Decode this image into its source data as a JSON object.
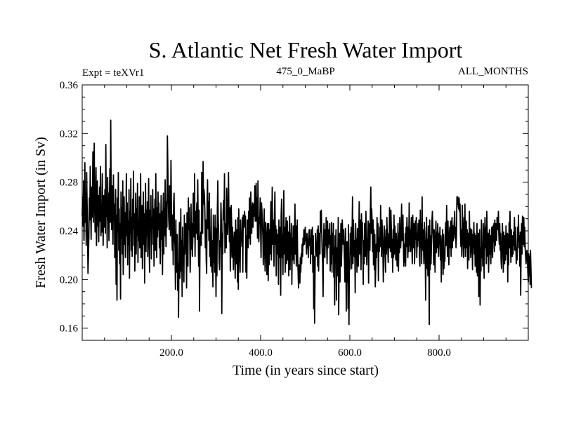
{
  "chart_data": {
    "type": "line",
    "title": "S. Atlantic Net Fresh Water Import",
    "subtitle_left": "Expt = teXVr1",
    "subtitle_center": "475_0_MaBP",
    "subtitle_right": "ALL_MONTHS",
    "xlabel": "Time (in years since start)",
    "ylabel": "Fresh Water Import (in Sv)",
    "xlim": [
      0,
      1000
    ],
    "ylim": [
      0.15,
      0.36
    ],
    "x_ticks": [
      {
        "value": 200,
        "label": "200.0"
      },
      {
        "value": 400,
        "label": "400.0"
      },
      {
        "value": 600,
        "label": "600.0"
      },
      {
        "value": 800,
        "label": "800.0"
      }
    ],
    "y_ticks": [
      {
        "value": 0.16,
        "label": "0.16"
      },
      {
        "value": 0.2,
        "label": "0.20"
      },
      {
        "value": 0.24,
        "label": "0.24"
      },
      {
        "value": 0.28,
        "label": "0.28"
      },
      {
        "value": 0.32,
        "label": "0.32"
      },
      {
        "value": 0.36,
        "label": "0.36"
      }
    ],
    "series": [
      {
        "name": "fresh_water_import",
        "x_start": 0,
        "x_step": 1,
        "values": [
          0.252,
          0.268,
          0.244,
          0.281,
          0.232,
          0.259,
          0.296,
          0.247,
          0.271,
          0.228,
          0.288,
          0.263,
          0.241,
          0.205,
          0.219,
          0.236,
          0.267,
          0.249,
          0.293,
          0.258,
          0.233,
          0.276,
          0.251,
          0.263,
          0.305,
          0.247,
          0.287,
          0.312,
          0.259,
          0.239,
          0.266,
          0.292,
          0.228,
          0.253,
          0.281,
          0.244,
          0.269,
          0.231,
          0.257,
          0.276,
          0.248,
          0.293,
          0.236,
          0.262,
          0.239,
          0.287,
          0.254,
          0.228,
          0.269,
          0.243,
          0.258,
          0.274,
          0.238,
          0.311,
          0.252,
          0.267,
          0.226,
          0.284,
          0.249,
          0.271,
          0.232,
          0.261,
          0.291,
          0.247,
          0.331,
          0.269,
          0.241,
          0.277,
          0.253,
          0.229,
          0.286,
          0.249,
          0.262,
          0.218,
          0.241,
          0.274,
          0.196,
          0.253,
          0.183,
          0.267,
          0.239,
          0.288,
          0.224,
          0.258,
          0.213,
          0.246,
          0.184,
          0.272,
          0.234,
          0.259,
          0.221,
          0.281,
          0.204,
          0.247,
          0.268,
          0.229,
          0.255,
          0.218,
          0.241,
          0.287,
          0.236,
          0.263,
          0.212,
          0.248,
          0.229,
          0.274,
          0.201,
          0.256,
          0.238,
          0.283,
          0.224,
          0.251,
          0.219,
          0.266,
          0.242,
          0.289,
          0.228,
          0.254,
          0.207,
          0.239,
          0.271,
          0.221,
          0.258,
          0.236,
          0.279,
          0.214,
          0.247,
          0.232,
          0.268,
          0.226,
          0.252,
          0.287,
          0.218,
          0.243,
          0.261,
          0.209,
          0.238,
          0.272,
          0.229,
          0.254,
          0.197,
          0.246,
          0.279,
          0.223,
          0.257,
          0.236,
          0.264,
          0.219,
          0.248,
          0.283,
          0.231,
          0.206,
          0.257,
          0.243,
          0.269,
          0.217,
          0.251,
          0.229,
          0.274,
          0.242,
          0.258,
          0.211,
          0.239,
          0.266,
          0.224,
          0.287,
          0.247,
          0.218,
          0.259,
          0.235,
          0.272,
          0.241,
          0.263,
          0.226,
          0.254,
          0.213,
          0.238,
          0.269,
          0.233,
          0.256,
          0.204,
          0.247,
          0.271,
          0.221,
          0.258,
          0.236,
          0.282,
          0.249,
          0.227,
          0.264,
          0.243,
          0.318,
          0.293,
          0.266,
          0.249,
          0.241,
          0.277,
          0.252,
          0.236,
          0.298,
          0.261,
          0.241,
          0.224,
          0.253,
          0.212,
          0.263,
          0.271,
          0.233,
          0.228,
          0.192,
          0.249,
          0.206,
          0.218,
          0.237,
          0.191,
          0.213,
          0.169,
          0.224,
          0.247,
          0.201,
          0.219,
          0.258,
          0.207,
          0.232,
          0.186,
          0.243,
          0.214,
          0.227,
          0.198,
          0.253,
          0.221,
          0.238,
          0.246,
          0.229,
          0.193,
          0.255,
          0.232,
          0.211,
          0.267,
          0.241,
          0.259,
          0.238,
          0.206,
          0.221,
          0.262,
          0.225,
          0.246,
          0.219,
          0.234,
          0.271,
          0.248,
          0.235,
          0.287,
          0.219,
          0.256,
          0.238,
          0.249,
          0.263,
          0.233,
          0.282,
          0.247,
          0.211,
          0.257,
          0.174,
          0.226,
          0.234,
          0.239,
          0.228,
          0.288,
          0.256,
          0.238,
          0.297,
          0.262,
          0.274,
          0.269,
          0.256,
          0.226,
          0.249,
          0.216,
          0.205,
          0.264,
          0.282,
          0.242,
          0.264,
          0.232,
          0.271,
          0.219,
          0.228,
          0.211,
          0.258,
          0.223,
          0.206,
          0.232,
          0.194,
          0.253,
          0.214,
          0.243,
          0.206,
          0.253,
          0.221,
          0.186,
          0.242,
          0.203,
          0.258,
          0.281,
          0.248,
          0.237,
          0.214,
          0.208,
          0.232,
          0.227,
          0.263,
          0.247,
          0.172,
          0.238,
          0.221,
          0.256,
          0.265,
          0.249,
          0.287,
          0.222,
          0.238,
          0.246,
          0.226,
          0.275,
          0.246,
          0.237,
          0.258,
          0.288,
          0.252,
          0.231,
          0.259,
          0.207,
          0.223,
          0.261,
          0.246,
          0.218,
          0.243,
          0.227,
          0.208,
          0.231,
          0.239,
          0.226,
          0.201,
          0.249,
          0.213,
          0.231,
          0.241,
          0.198,
          0.251,
          0.192,
          0.258,
          0.233,
          0.218,
          0.206,
          0.249,
          0.231,
          0.239,
          0.227,
          0.251,
          0.206,
          0.253,
          0.251,
          0.243,
          0.256,
          0.248,
          0.252,
          0.206,
          0.236,
          0.201,
          0.249,
          0.238,
          0.226,
          0.256,
          0.234,
          0.267,
          0.243,
          0.229,
          0.272,
          0.247,
          0.238,
          0.258,
          0.263,
          0.243,
          0.262,
          0.259,
          0.252,
          0.277,
          0.248,
          0.256,
          0.279,
          0.248,
          0.267,
          0.234,
          0.281,
          0.243,
          0.231,
          0.251,
          0.246,
          0.267,
          0.239,
          0.218,
          0.263,
          0.256,
          0.248,
          0.236,
          0.212,
          0.231,
          0.258,
          0.226,
          0.207,
          0.247,
          0.238,
          0.221,
          0.204,
          0.246,
          0.232,
          0.199,
          0.246,
          0.212,
          0.241,
          0.221,
          0.243,
          0.264,
          0.216,
          0.238,
          0.276,
          0.229,
          0.249,
          0.236,
          0.211,
          0.254,
          0.272,
          0.229,
          0.244,
          0.203,
          0.241,
          0.228,
          0.221,
          0.237,
          0.196,
          0.249,
          0.218,
          0.243,
          0.226,
          0.187,
          0.253,
          0.266,
          0.218,
          0.237,
          0.204,
          0.249,
          0.273,
          0.221,
          0.243,
          0.206,
          0.231,
          0.251,
          0.213,
          0.227,
          0.248,
          0.216,
          0.239,
          0.203,
          0.229,
          0.252,
          0.208,
          0.238,
          0.221,
          0.246,
          0.196,
          0.234,
          0.216,
          0.244,
          0.226,
          0.213,
          0.238,
          0.262,
          0.221,
          0.244,
          0.211,
          0.226,
          0.249,
          0.218,
          0.206,
          0.193,
          0.212,
          0.201,
          0.197,
          0.218,
          0.206,
          0.221,
          0.213,
          0.229,
          0.219,
          0.234,
          0.228,
          0.241,
          0.229,
          0.236,
          0.243,
          0.233,
          0.229,
          0.221,
          0.238,
          0.226,
          0.233,
          0.218,
          0.236,
          0.241,
          0.228,
          0.234,
          0.213,
          0.241,
          0.228,
          0.221,
          0.243,
          0.206,
          0.236,
          0.176,
          0.219,
          0.164,
          0.206,
          0.238,
          0.226,
          0.229,
          0.219,
          0.241,
          0.211,
          0.244,
          0.207,
          0.238,
          0.223,
          0.221,
          0.256,
          0.239,
          0.257,
          0.238,
          0.223,
          0.213,
          0.186,
          0.231,
          0.246,
          0.221,
          0.218,
          0.241,
          0.228,
          0.251,
          0.229,
          0.213,
          0.248,
          0.226,
          0.239,
          0.241,
          0.229,
          0.246,
          0.207,
          0.236,
          0.213,
          0.247,
          0.206,
          0.238,
          0.221,
          0.246,
          0.202,
          0.226,
          0.179,
          0.236,
          0.228,
          0.241,
          0.183,
          0.226,
          0.203,
          0.216,
          0.251,
          0.171,
          0.213,
          0.238,
          0.198,
          0.226,
          0.246,
          0.211,
          0.226,
          0.249,
          0.238,
          0.229,
          0.241,
          0.228,
          0.216,
          0.198,
          0.242,
          0.228,
          0.174,
          0.231,
          0.198,
          0.231,
          0.176,
          0.245,
          0.163,
          0.216,
          0.208,
          0.238,
          0.221,
          0.243,
          0.209,
          0.236,
          0.268,
          0.213,
          0.249,
          0.231,
          0.219,
          0.232,
          0.189,
          0.246,
          0.218,
          0.233,
          0.206,
          0.242,
          0.226,
          0.211,
          0.235,
          0.264,
          0.221,
          0.249,
          0.232,
          0.208,
          0.254,
          0.236,
          0.247,
          0.228,
          0.196,
          0.232,
          0.213,
          0.246,
          0.227,
          0.219,
          0.256,
          0.238,
          0.212,
          0.233,
          0.227,
          0.248,
          0.197,
          0.232,
          0.246,
          0.224,
          0.257,
          0.276,
          0.238,
          0.258,
          0.247,
          0.223,
          0.249,
          0.212,
          0.241,
          0.208,
          0.237,
          0.194,
          0.209,
          0.229,
          0.218,
          0.251,
          0.223,
          0.246,
          0.199,
          0.234,
          0.223,
          0.243,
          0.227,
          0.261,
          0.238,
          0.219,
          0.249,
          0.237,
          0.226,
          0.198,
          0.226,
          0.244,
          0.233,
          0.218,
          0.206,
          0.241,
          0.221,
          0.251,
          0.234,
          0.226,
          0.214,
          0.238,
          0.226,
          0.259,
          0.234,
          0.223,
          0.257,
          0.242,
          0.218,
          0.233,
          0.206,
          0.241,
          0.218,
          0.253,
          0.221,
          0.244,
          0.231,
          0.216,
          0.238,
          0.224,
          0.211,
          0.226,
          0.246,
          0.207,
          0.238,
          0.222,
          0.251,
          0.231,
          0.226,
          0.238,
          0.262,
          0.232,
          0.248,
          0.253,
          0.229,
          0.211,
          0.229,
          0.214,
          0.238,
          0.211,
          0.243,
          0.227,
          0.251,
          0.232,
          0.218,
          0.243,
          0.223,
          0.263,
          0.228,
          0.241,
          0.223,
          0.239,
          0.251,
          0.227,
          0.213,
          0.253,
          0.238,
          0.226,
          0.246,
          0.213,
          0.226,
          0.248,
          0.233,
          0.251,
          0.218,
          0.238,
          0.227,
          0.246,
          0.232,
          0.249,
          0.221,
          0.211,
          0.257,
          0.226,
          0.246,
          0.213,
          0.268,
          0.224,
          0.241,
          0.229,
          0.213,
          0.247,
          0.232,
          0.219,
          0.183,
          0.238,
          0.251,
          0.209,
          0.233,
          0.203,
          0.244,
          0.228,
          0.163,
          0.249,
          0.208,
          0.236,
          0.213,
          0.229,
          0.248,
          0.256,
          0.243,
          0.233,
          0.212,
          0.241,
          0.227,
          0.206,
          0.234,
          0.248,
          0.222,
          0.239,
          0.226,
          0.246,
          0.231,
          0.219,
          0.238,
          0.229,
          0.243,
          0.216,
          0.236,
          0.198,
          0.226,
          0.232,
          0.241,
          0.204,
          0.237,
          0.209,
          0.223,
          0.215,
          0.238,
          0.247,
          0.228,
          0.261,
          0.233,
          0.219,
          0.248,
          0.229,
          0.212,
          0.236,
          0.243,
          0.226,
          0.248,
          0.219,
          0.238,
          0.251,
          0.226,
          0.244,
          0.232,
          0.238,
          0.248,
          0.256,
          0.234,
          0.243,
          0.226,
          0.236,
          0.268,
          0.262,
          0.268,
          0.261,
          0.258,
          0.267,
          0.256,
          0.262,
          0.236,
          0.227,
          0.241,
          0.219,
          0.261,
          0.246,
          0.231,
          0.218,
          0.251,
          0.226,
          0.262,
          0.219,
          0.236,
          0.248,
          0.226,
          0.241,
          0.209,
          0.238,
          0.228,
          0.216,
          0.256,
          0.228,
          0.242,
          0.218,
          0.226,
          0.241,
          0.233,
          0.208,
          0.237,
          0.226,
          0.247,
          0.221,
          0.238,
          0.211,
          0.236,
          0.228,
          0.206,
          0.246,
          0.203,
          0.219,
          0.238,
          0.186,
          0.223,
          0.241,
          0.179,
          0.226,
          0.207,
          0.249,
          0.218,
          0.227,
          0.211,
          0.246,
          0.232,
          0.201,
          0.238,
          0.251,
          0.226,
          0.243,
          0.213,
          0.256,
          0.238,
          0.219,
          0.238,
          0.206,
          0.226,
          0.241,
          0.221,
          0.236,
          0.213,
          0.228,
          0.243,
          0.231,
          0.218,
          0.244,
          0.231,
          0.246,
          0.223,
          0.249,
          0.228,
          0.246,
          0.243,
          0.232,
          0.251,
          0.249,
          0.241,
          0.256,
          0.237,
          0.229,
          0.246,
          0.224,
          0.238,
          0.216,
          0.209,
          0.228,
          0.246,
          0.232,
          0.206,
          0.239,
          0.223,
          0.213,
          0.236,
          0.216,
          0.244,
          0.221,
          0.228,
          0.238,
          0.198,
          0.237,
          0.212,
          0.247,
          0.226,
          0.256,
          0.233,
          0.214,
          0.241,
          0.227,
          0.219,
          0.236,
          0.221,
          0.239,
          0.228,
          0.251,
          0.224,
          0.243,
          0.232,
          0.213,
          0.226,
          0.216,
          0.243,
          0.231,
          0.253,
          0.226,
          0.236,
          0.211,
          0.239,
          0.187,
          0.228,
          0.246,
          0.221,
          0.252,
          0.238,
          0.229,
          0.251,
          0.227,
          0.243,
          0.226,
          0.219,
          0.213,
          0.221,
          0.224,
          0.219,
          0.206,
          0.198,
          0.221,
          0.203,
          0.219,
          0.196,
          0.224,
          0.209,
          0.193
        ]
      }
    ]
  }
}
